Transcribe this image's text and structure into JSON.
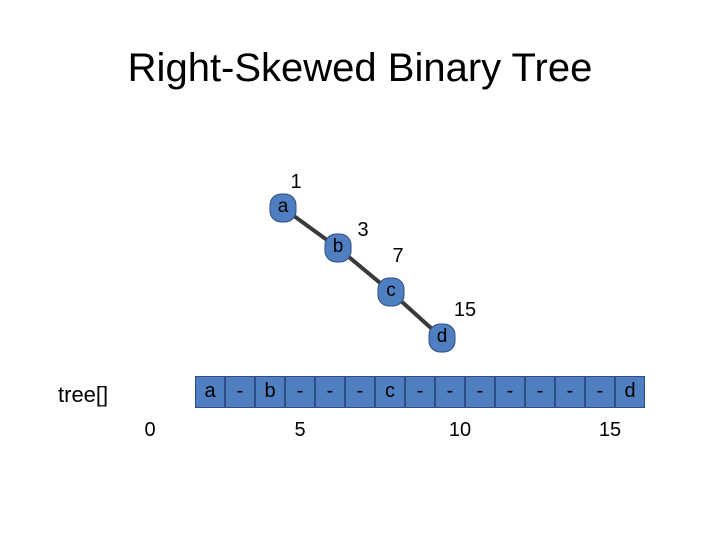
{
  "title": "Right-Skewed Binary Tree",
  "tree": {
    "node_fill": "#4f7fc1",
    "node_stroke": "#2c4e80",
    "edge_color": "#3a3a3a",
    "nodes": [
      {
        "label": "a",
        "index": "1"
      },
      {
        "label": "b",
        "index": "3"
      },
      {
        "label": "c",
        "index": "7"
      },
      {
        "label": "d",
        "index": "15"
      }
    ]
  },
  "array": {
    "name": "tree[]",
    "cells": [
      "",
      "a",
      "-",
      "b",
      "-",
      "-",
      "-",
      "c",
      "-",
      "-",
      "-",
      "-",
      "-",
      "-",
      "-",
      "d"
    ],
    "index_labels": [
      "0",
      "5",
      "10",
      "15"
    ]
  }
}
